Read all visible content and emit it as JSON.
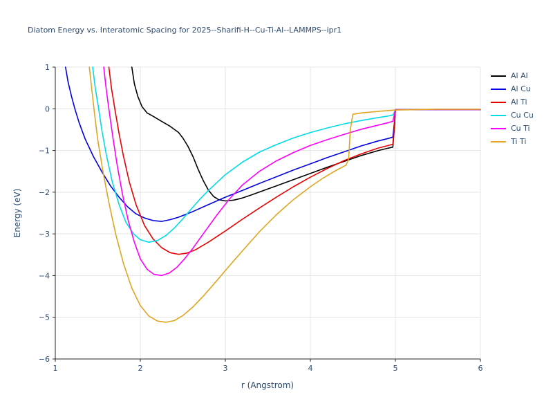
{
  "chart_data": {
    "type": "line",
    "title": "Diatom Energy vs. Interatomic Spacing for 2025--Sharifi-H--Cu-Ti-Al--LAMMPS--ipr1",
    "xlabel": "r (Angstrom)",
    "ylabel": "Energy (eV)",
    "xlim": [
      1,
      6
    ],
    "ylim": [
      -6,
      1
    ],
    "grid": true,
    "legend_position": "right-outside-top",
    "colors": {
      "text": "#2c4a6e",
      "grid": "#e5e5e5",
      "spine": "#262626",
      "background": "#ffffff"
    },
    "xticks": {
      "values": [
        1,
        2,
        3,
        4,
        5,
        6
      ],
      "labels": [
        "1",
        "2",
        "3",
        "4",
        "5",
        "6"
      ]
    },
    "yticks": {
      "values": [
        1,
        0,
        -1,
        -2,
        -3,
        -4,
        -5,
        -6
      ],
      "labels": [
        "1",
        "0",
        "−1",
        "−2",
        "−3",
        "−4",
        "−5",
        "−6"
      ]
    },
    "series": [
      {
        "name": "Al Al",
        "color": "#000000",
        "points": [
          [
            1.9,
            1.0
          ],
          [
            1.93,
            0.6
          ],
          [
            1.97,
            0.3
          ],
          [
            2.02,
            0.05
          ],
          [
            2.08,
            -0.1
          ],
          [
            2.15,
            -0.18
          ],
          [
            2.25,
            -0.3
          ],
          [
            2.35,
            -0.42
          ],
          [
            2.45,
            -0.57
          ],
          [
            2.5,
            -0.7
          ],
          [
            2.56,
            -0.9
          ],
          [
            2.62,
            -1.15
          ],
          [
            2.68,
            -1.45
          ],
          [
            2.74,
            -1.72
          ],
          [
            2.8,
            -1.95
          ],
          [
            2.86,
            -2.1
          ],
          [
            2.92,
            -2.18
          ],
          [
            3.0,
            -2.21
          ],
          [
            3.1,
            -2.19
          ],
          [
            3.2,
            -2.14
          ],
          [
            3.3,
            -2.07
          ],
          [
            3.45,
            -1.96
          ],
          [
            3.6,
            -1.85
          ],
          [
            3.8,
            -1.7
          ],
          [
            4.0,
            -1.55
          ],
          [
            4.2,
            -1.4
          ],
          [
            4.4,
            -1.26
          ],
          [
            4.6,
            -1.12
          ],
          [
            4.8,
            -1.0
          ],
          [
            4.9,
            -0.95
          ],
          [
            4.97,
            -0.92
          ],
          [
            4.99,
            -0.4
          ],
          [
            5.0,
            -0.02
          ],
          [
            6.0,
            -0.02
          ]
        ]
      },
      {
        "name": "Al Cu",
        "color": "#0000e0",
        "points": [
          [
            1.12,
            1.0
          ],
          [
            1.15,
            0.65
          ],
          [
            1.19,
            0.3
          ],
          [
            1.23,
            0.0
          ],
          [
            1.28,
            -0.33
          ],
          [
            1.35,
            -0.72
          ],
          [
            1.45,
            -1.15
          ],
          [
            1.55,
            -1.52
          ],
          [
            1.65,
            -1.85
          ],
          [
            1.75,
            -2.12
          ],
          [
            1.85,
            -2.35
          ],
          [
            1.95,
            -2.52
          ],
          [
            2.05,
            -2.62
          ],
          [
            2.15,
            -2.68
          ],
          [
            2.25,
            -2.7
          ],
          [
            2.35,
            -2.66
          ],
          [
            2.45,
            -2.6
          ],
          [
            2.6,
            -2.48
          ],
          [
            2.8,
            -2.3
          ],
          [
            3.0,
            -2.12
          ],
          [
            3.2,
            -1.96
          ],
          [
            3.4,
            -1.79
          ],
          [
            3.6,
            -1.63
          ],
          [
            3.8,
            -1.47
          ],
          [
            4.0,
            -1.32
          ],
          [
            4.2,
            -1.17
          ],
          [
            4.4,
            -1.03
          ],
          [
            4.6,
            -0.89
          ],
          [
            4.8,
            -0.77
          ],
          [
            4.9,
            -0.72
          ],
          [
            4.97,
            -0.68
          ],
          [
            4.99,
            -0.3
          ],
          [
            5.0,
            -0.02
          ],
          [
            6.0,
            -0.02
          ]
        ]
      },
      {
        "name": "Al Ti",
        "color": "#e80000",
        "points": [
          [
            1.63,
            1.0
          ],
          [
            1.66,
            0.5
          ],
          [
            1.7,
            0.0
          ],
          [
            1.75,
            -0.6
          ],
          [
            1.8,
            -1.12
          ],
          [
            1.87,
            -1.75
          ],
          [
            1.95,
            -2.3
          ],
          [
            2.05,
            -2.8
          ],
          [
            2.15,
            -3.12
          ],
          [
            2.25,
            -3.33
          ],
          [
            2.35,
            -3.45
          ],
          [
            2.45,
            -3.49
          ],
          [
            2.55,
            -3.46
          ],
          [
            2.65,
            -3.38
          ],
          [
            2.8,
            -3.2
          ],
          [
            3.0,
            -2.93
          ],
          [
            3.2,
            -2.65
          ],
          [
            3.4,
            -2.38
          ],
          [
            3.6,
            -2.12
          ],
          [
            3.8,
            -1.87
          ],
          [
            4.0,
            -1.64
          ],
          [
            4.2,
            -1.43
          ],
          [
            4.4,
            -1.24
          ],
          [
            4.6,
            -1.08
          ],
          [
            4.8,
            -0.94
          ],
          [
            4.9,
            -0.89
          ],
          [
            4.97,
            -0.85
          ],
          [
            4.99,
            -0.38
          ],
          [
            5.0,
            -0.02
          ],
          [
            6.0,
            -0.02
          ]
        ]
      },
      {
        "name": "Cu Cu",
        "color": "#00dce5",
        "points": [
          [
            1.44,
            1.0
          ],
          [
            1.47,
            0.5
          ],
          [
            1.51,
            0.0
          ],
          [
            1.55,
            -0.55
          ],
          [
            1.6,
            -1.1
          ],
          [
            1.67,
            -1.75
          ],
          [
            1.75,
            -2.3
          ],
          [
            1.83,
            -2.72
          ],
          [
            1.92,
            -3.0
          ],
          [
            2.0,
            -3.14
          ],
          [
            2.1,
            -3.2
          ],
          [
            2.2,
            -3.16
          ],
          [
            2.3,
            -3.04
          ],
          [
            2.4,
            -2.86
          ],
          [
            2.5,
            -2.64
          ],
          [
            2.6,
            -2.4
          ],
          [
            2.7,
            -2.17
          ],
          [
            2.8,
            -1.96
          ],
          [
            3.0,
            -1.58
          ],
          [
            3.2,
            -1.28
          ],
          [
            3.4,
            -1.04
          ],
          [
            3.6,
            -0.86
          ],
          [
            3.8,
            -0.7
          ],
          [
            4.0,
            -0.57
          ],
          [
            4.2,
            -0.46
          ],
          [
            4.4,
            -0.36
          ],
          [
            4.6,
            -0.28
          ],
          [
            4.8,
            -0.21
          ],
          [
            4.9,
            -0.18
          ],
          [
            4.97,
            -0.15
          ],
          [
            4.99,
            -0.07
          ],
          [
            5.0,
            -0.02
          ],
          [
            6.0,
            -0.02
          ]
        ]
      },
      {
        "name": "Cu Ti",
        "color": "#fb00fb",
        "points": [
          [
            1.57,
            1.0
          ],
          [
            1.6,
            0.45
          ],
          [
            1.64,
            -0.15
          ],
          [
            1.68,
            -0.72
          ],
          [
            1.73,
            -1.38
          ],
          [
            1.79,
            -2.05
          ],
          [
            1.86,
            -2.7
          ],
          [
            1.93,
            -3.2
          ],
          [
            2.0,
            -3.6
          ],
          [
            2.08,
            -3.85
          ],
          [
            2.16,
            -3.97
          ],
          [
            2.25,
            -4.0
          ],
          [
            2.34,
            -3.94
          ],
          [
            2.43,
            -3.8
          ],
          [
            2.52,
            -3.6
          ],
          [
            2.62,
            -3.34
          ],
          [
            2.75,
            -2.97
          ],
          [
            2.9,
            -2.55
          ],
          [
            3.05,
            -2.16
          ],
          [
            3.2,
            -1.83
          ],
          [
            3.4,
            -1.5
          ],
          [
            3.6,
            -1.25
          ],
          [
            3.8,
            -1.05
          ],
          [
            4.0,
            -0.88
          ],
          [
            4.2,
            -0.74
          ],
          [
            4.4,
            -0.61
          ],
          [
            4.6,
            -0.49
          ],
          [
            4.8,
            -0.39
          ],
          [
            4.9,
            -0.34
          ],
          [
            4.97,
            -0.3
          ],
          [
            4.99,
            -0.12
          ],
          [
            5.0,
            -0.02
          ],
          [
            6.0,
            -0.02
          ]
        ]
      },
      {
        "name": "Ti Ti",
        "color": "#dfa520",
        "points": [
          [
            1.4,
            1.0
          ],
          [
            1.43,
            0.45
          ],
          [
            1.46,
            -0.1
          ],
          [
            1.5,
            -0.75
          ],
          [
            1.56,
            -1.5
          ],
          [
            1.63,
            -2.25
          ],
          [
            1.71,
            -3.0
          ],
          [
            1.8,
            -3.7
          ],
          [
            1.9,
            -4.3
          ],
          [
            2.0,
            -4.72
          ],
          [
            2.1,
            -4.97
          ],
          [
            2.2,
            -5.09
          ],
          [
            2.3,
            -5.12
          ],
          [
            2.4,
            -5.08
          ],
          [
            2.5,
            -4.96
          ],
          [
            2.62,
            -4.75
          ],
          [
            2.75,
            -4.47
          ],
          [
            2.9,
            -4.12
          ],
          [
            3.05,
            -3.76
          ],
          [
            3.2,
            -3.41
          ],
          [
            3.4,
            -2.95
          ],
          [
            3.6,
            -2.54
          ],
          [
            3.8,
            -2.18
          ],
          [
            4.0,
            -1.87
          ],
          [
            4.15,
            -1.66
          ],
          [
            4.3,
            -1.48
          ],
          [
            4.42,
            -1.35
          ],
          [
            4.45,
            -1.2
          ],
          [
            4.47,
            -0.5
          ],
          [
            4.5,
            -0.13
          ],
          [
            4.6,
            -0.1
          ],
          [
            4.8,
            -0.06
          ],
          [
            5.0,
            -0.03
          ],
          [
            5.5,
            -0.01
          ],
          [
            6.0,
            -0.01
          ]
        ]
      }
    ]
  }
}
